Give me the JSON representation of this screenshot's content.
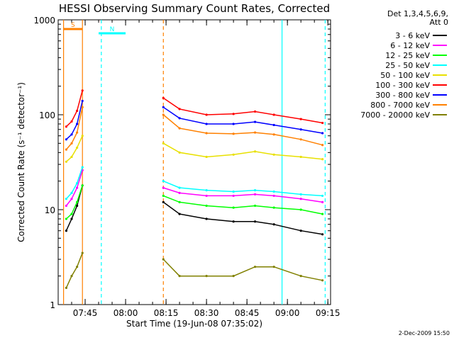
{
  "chart_data": {
    "type": "line",
    "title": "HESSI Observing Summary Count Rates, Corrected",
    "xlabel": "Start Time (19-Jun-08 07:35:02)",
    "ylabel": "Corrected Count Rate (s⁻¹ detector⁻¹)",
    "yscale": "log",
    "ylim": [
      1,
      1000
    ],
    "xlim_minutes": [
      0,
      101
    ],
    "x_ticks": [
      "07:45",
      "08:00",
      "08:15",
      "08:30",
      "08:45",
      "09:00",
      "09:15"
    ],
    "y_ticks": [
      "1",
      "10",
      "100",
      "1000"
    ],
    "legend_header": [
      "Det 1,3,4,5,6,9,",
      "Att 0"
    ],
    "legend_position": "right",
    "flags": [
      {
        "label": "S",
        "color": "#ff8000",
        "start": "07:37",
        "end": "07:44"
      },
      {
        "label": "N",
        "color": "#00ffff",
        "start": "07:50",
        "end": "08:00"
      }
    ],
    "x": [
      "07:38",
      "07:40",
      "07:42",
      "07:44",
      "08:14",
      "08:20",
      "08:30",
      "08:40",
      "08:48",
      "08:55",
      "09:05",
      "09:13"
    ],
    "series": [
      {
        "name": "3 - 6 keV",
        "color": "#000000",
        "values": [
          6,
          8,
          11,
          18,
          12,
          9,
          8,
          7.5,
          7.5,
          7,
          6,
          5.5
        ]
      },
      {
        "name": "6 - 12 keV",
        "color": "#ff00ff",
        "values": [
          11,
          13,
          17,
          26,
          17,
          15,
          14,
          14,
          14.5,
          14,
          13,
          12
        ]
      },
      {
        "name": "12 - 25 keV",
        "color": "#00ff00",
        "values": [
          8,
          9,
          12,
          18,
          14,
          12,
          11,
          10.5,
          11,
          10.5,
          10,
          9
        ]
      },
      {
        "name": "25 - 50 keV",
        "color": "#00ffff",
        "values": [
          13,
          15,
          19,
          28,
          20,
          17,
          16,
          15.5,
          16,
          15.5,
          14.5,
          14
        ]
      },
      {
        "name": "50 - 100 keV",
        "color": "#e8e000",
        "values": [
          32,
          36,
          45,
          60,
          50,
          40,
          36,
          38,
          41,
          38,
          36,
          34
        ]
      },
      {
        "name": "100 - 300 keV",
        "color": "#ff0000",
        "values": [
          75,
          85,
          110,
          180,
          150,
          115,
          100,
          102,
          108,
          100,
          90,
          82
        ]
      },
      {
        "name": "300 - 800 keV",
        "color": "#0000ff",
        "values": [
          55,
          62,
          80,
          140,
          120,
          92,
          80,
          80,
          84,
          78,
          70,
          64
        ]
      },
      {
        "name": "800 - 7000 keV",
        "color": "#ff8000",
        "values": [
          43,
          50,
          65,
          120,
          100,
          72,
          64,
          63,
          65,
          62,
          55,
          48
        ]
      },
      {
        "name": "7000 - 20000 keV",
        "color": "#808000",
        "values": [
          1.5,
          2,
          2.5,
          3.5,
          3,
          2,
          2,
          2,
          2.5,
          2.5,
          2,
          1.8
        ]
      }
    ],
    "vertical_lines": [
      {
        "time": "07:37",
        "color": "#ff8000",
        "style": "solid"
      },
      {
        "time": "07:44",
        "color": "#ff8000",
        "style": "solid"
      },
      {
        "time": "07:51",
        "color": "#00ffff",
        "style": "dashed"
      },
      {
        "time": "08:14",
        "color": "#ff8000",
        "style": "dashed"
      },
      {
        "time": "08:58",
        "color": "#00ffff",
        "style": "solid"
      },
      {
        "time": "09:14",
        "color": "#00ffff",
        "style": "dashed"
      }
    ],
    "grid": false
  },
  "timestamp": "2-Dec-2009 15:50"
}
